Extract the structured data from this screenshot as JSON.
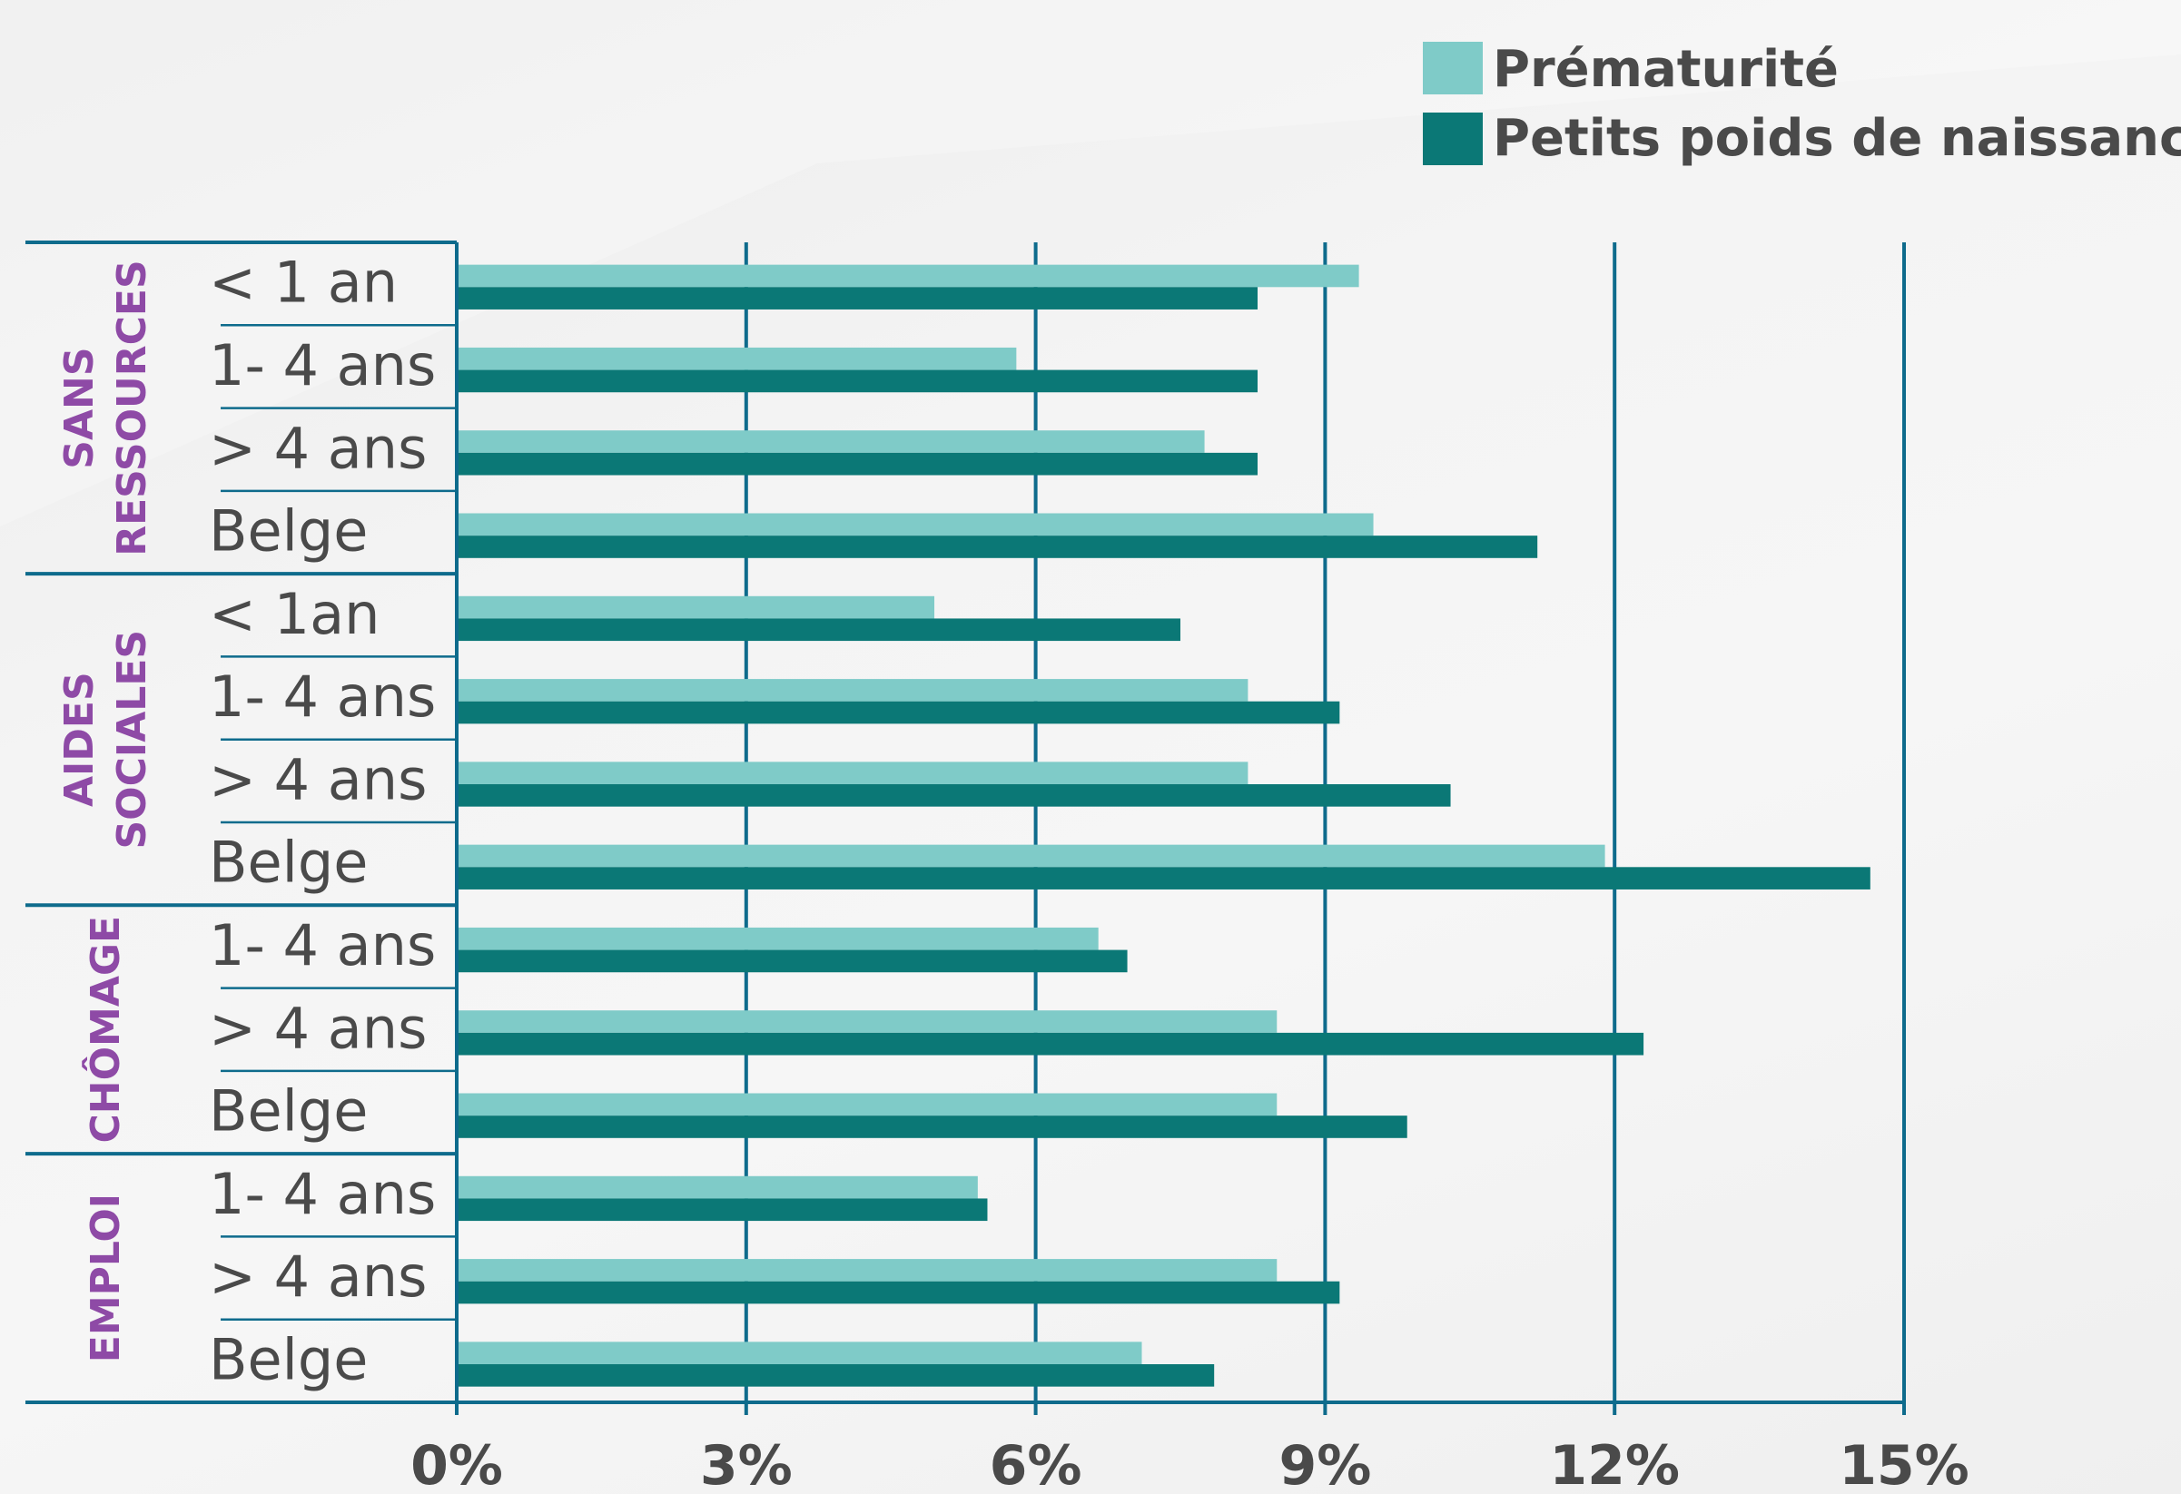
{
  "chart_data": {
    "type": "bar",
    "orientation": "horizontal",
    "xlim": [
      0,
      15
    ],
    "xticks": [
      "0%",
      "3%",
      "6%",
      "9%",
      "12%",
      "15%"
    ],
    "legend_position": "top-right",
    "grid": true,
    "series": [
      {
        "name": "Prématurité",
        "color": "#7fcbc8"
      },
      {
        "name": "Petits poids de naissance",
        "color": "#0b7876"
      }
    ],
    "groups": [
      {
        "label_lines": [
          "SANS",
          "RESSOURCES"
        ],
        "rows": [
          {
            "label": "< 1 an",
            "values": [
              9.35,
              8.3
            ]
          },
          {
            "label": "1- 4 ans",
            "values": [
              5.8,
              8.3
            ]
          },
          {
            "label": "> 4 ans",
            "values": [
              7.75,
              8.3
            ]
          },
          {
            "label": "Belge",
            "values": [
              9.5,
              11.2
            ]
          }
        ]
      },
      {
        "label_lines": [
          "AIDES",
          "SOCIALES"
        ],
        "rows": [
          {
            "label": "< 1an",
            "values": [
              4.95,
              7.5
            ]
          },
          {
            "label": "1- 4 ans",
            "values": [
              8.2,
              9.15
            ]
          },
          {
            "label": "> 4 ans",
            "values": [
              8.2,
              10.3
            ]
          },
          {
            "label": "Belge",
            "values": [
              11.9,
              14.65
            ]
          }
        ]
      },
      {
        "label_lines": [
          "CHÔMAGE"
        ],
        "rows": [
          {
            "label": "1- 4 ans",
            "values": [
              6.65,
              6.95
            ]
          },
          {
            "label": "> 4 ans",
            "values": [
              8.5,
              12.3
            ]
          },
          {
            "label": "Belge",
            "values": [
              8.5,
              9.85
            ]
          }
        ]
      },
      {
        "label_lines": [
          "EMPLOI"
        ],
        "rows": [
          {
            "label": "1- 4 ans",
            "values": [
              5.4,
              5.5
            ]
          },
          {
            "label": "> 4 ans",
            "values": [
              8.5,
              9.15
            ]
          },
          {
            "label": "Belge",
            "values": [
              7.1,
              7.85
            ]
          }
        ]
      }
    ]
  }
}
